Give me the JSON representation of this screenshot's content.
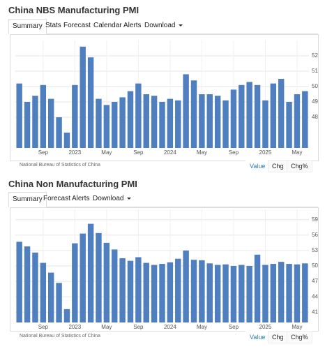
{
  "chart_data": [
    {
      "type": "bar",
      "title": "China NBS Manufacturing PMI",
      "source": "National Bureau of Statistics of China",
      "categories": [
        null,
        null,
        null,
        "Sep",
        null,
        null,
        null,
        "2023",
        null,
        null,
        null,
        "May",
        null,
        null,
        null,
        "Sep",
        null,
        null,
        null,
        "2024",
        null,
        null,
        null,
        "May",
        null,
        null,
        null,
        "Sep",
        null,
        null,
        null,
        "2025",
        null,
        null,
        null,
        "May",
        null
      ],
      "values": [
        50.2,
        49.0,
        49.4,
        50.1,
        49.2,
        48.0,
        47.0,
        50.1,
        52.6,
        51.9,
        49.2,
        48.8,
        49.0,
        49.3,
        49.7,
        50.2,
        49.5,
        49.4,
        49.0,
        49.2,
        49.1,
        50.8,
        50.4,
        49.5,
        49.5,
        49.4,
        49.1,
        49.8,
        50.1,
        50.3,
        50.1,
        49.1,
        50.2,
        50.5,
        49.0,
        49.5,
        49.7
      ],
      "color": "#4f7fbf",
      "ylim": [
        46,
        53
      ],
      "yticks": [
        48,
        49,
        50,
        51,
        52
      ],
      "grid": true
    },
    {
      "type": "bar",
      "title": "China Non Manufacturing PMI",
      "source": "National Bureau of Statistics of China",
      "categories": [
        null,
        null,
        null,
        "Sep",
        null,
        null,
        null,
        "2023",
        null,
        null,
        null,
        "May",
        null,
        null,
        null,
        "Sep",
        null,
        null,
        null,
        "2024",
        null,
        null,
        null,
        "May",
        null,
        null,
        null,
        "Sep",
        null,
        null,
        null,
        "2025",
        null,
        null,
        null,
        "May",
        null
      ],
      "values": [
        54.7,
        53.8,
        52.6,
        50.6,
        48.7,
        46.7,
        41.6,
        54.4,
        56.3,
        58.2,
        56.4,
        54.5,
        53.2,
        51.5,
        51.0,
        51.7,
        50.6,
        50.2,
        50.4,
        50.7,
        51.4,
        53.0,
        51.2,
        51.1,
        50.5,
        50.2,
        50.3,
        50.0,
        50.2,
        50.0,
        52.2,
        50.2,
        50.4,
        50.8,
        50.4,
        50.3,
        50.5
      ],
      "color": "#4f7fbf",
      "ylim": [
        39,
        61
      ],
      "yticks": [
        41,
        44,
        47,
        50,
        53,
        56,
        59
      ],
      "grid": true
    }
  ],
  "panels": [
    {
      "tabs": [
        "Summary",
        "Stats",
        "Forecast",
        "Calendar",
        "Alerts",
        "Download"
      ],
      "buttons": [
        "Value",
        "Chg",
        "Chg%"
      ]
    },
    {
      "tabs": [
        "Summary",
        "Forecast",
        "Alerts",
        "Download"
      ],
      "buttons": [
        "Value",
        "Chg",
        "Chg%"
      ]
    }
  ]
}
